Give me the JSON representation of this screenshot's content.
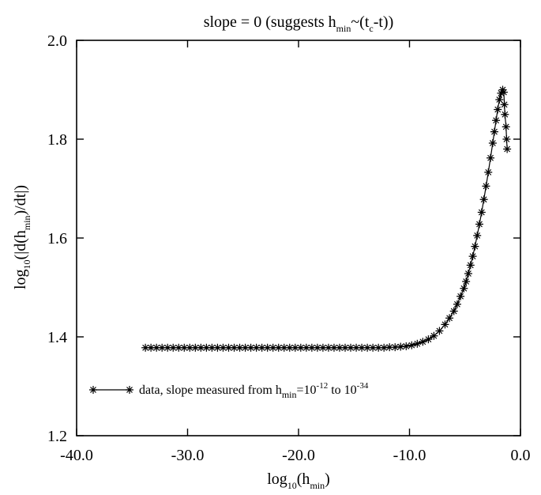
{
  "chart_data": {
    "type": "line",
    "title": {
      "prefix": "slope = 0 (suggests h",
      "sub1": "min",
      "mid": "~(t",
      "sub2": "c",
      "suffix": "-t))"
    },
    "xlabel": {
      "base": "log",
      "sub1": "10",
      "open": "(h",
      "sub2": "min",
      "close": ")"
    },
    "ylabel": {
      "base": "log",
      "sub1": "10",
      "open": "(|d(h",
      "sub2": "min",
      "close": ")/dt|)"
    },
    "xlim": [
      -40,
      0
    ],
    "ylim": [
      1.2,
      2.0
    ],
    "xticks": [
      -40,
      -30,
      -20,
      -10,
      0
    ],
    "xtick_labels": [
      "-40.0",
      "-30.0",
      "-20.0",
      "-10.0",
      "0.0"
    ],
    "yticks": [
      1.2,
      1.4,
      1.6,
      1.8,
      2.0
    ],
    "ytick_labels": [
      "1.2",
      "1.4",
      "1.6",
      "1.8",
      "2.0"
    ],
    "grid": false,
    "legend_position": "bottom-left",
    "legend": {
      "text1": "data, slope measured from h",
      "sub1": "min",
      "text2": "=10",
      "sup1": "-12",
      "text3": " to 10",
      "sup2": "-34"
    },
    "series": [
      {
        "marker": "asterisk",
        "x": [
          -33.8,
          -33.3,
          -32.8,
          -32.3,
          -31.8,
          -31.3,
          -30.8,
          -30.3,
          -29.8,
          -29.3,
          -28.8,
          -28.3,
          -27.8,
          -27.3,
          -26.8,
          -26.3,
          -25.8,
          -25.3,
          -24.8,
          -24.3,
          -23.8,
          -23.3,
          -22.8,
          -22.3,
          -21.8,
          -21.3,
          -20.8,
          -20.3,
          -19.8,
          -19.3,
          -18.8,
          -18.3,
          -17.8,
          -17.3,
          -16.8,
          -16.3,
          -15.8,
          -15.3,
          -14.8,
          -14.3,
          -13.8,
          -13.3,
          -12.8,
          -12.3,
          -11.8,
          -11.3,
          -10.8,
          -10.3,
          -9.8,
          -9.3,
          -8.8,
          -8.3,
          -7.8,
          -7.3,
          -6.8,
          -6.4,
          -6.0,
          -5.7,
          -5.4,
          -5.1,
          -4.9,
          -4.7,
          -4.5,
          -4.3,
          -4.1,
          -3.9,
          -3.7,
          -3.5,
          -3.3,
          -3.1,
          -2.9,
          -2.7,
          -2.5,
          -2.35,
          -2.2,
          -2.05,
          -1.9,
          -1.75,
          -1.6,
          -1.5,
          -1.45,
          -1.4,
          -1.3,
          -1.25,
          -1.2
        ],
        "y": [
          1.378,
          1.378,
          1.378,
          1.378,
          1.378,
          1.378,
          1.378,
          1.378,
          1.378,
          1.378,
          1.378,
          1.378,
          1.378,
          1.378,
          1.378,
          1.378,
          1.378,
          1.378,
          1.378,
          1.378,
          1.378,
          1.378,
          1.378,
          1.378,
          1.378,
          1.378,
          1.378,
          1.378,
          1.378,
          1.378,
          1.378,
          1.378,
          1.378,
          1.378,
          1.378,
          1.378,
          1.378,
          1.378,
          1.378,
          1.378,
          1.378,
          1.378,
          1.378,
          1.378,
          1.379,
          1.379,
          1.38,
          1.381,
          1.383,
          1.386,
          1.39,
          1.395,
          1.402,
          1.412,
          1.425,
          1.438,
          1.452,
          1.466,
          1.482,
          1.498,
          1.512,
          1.528,
          1.545,
          1.563,
          1.583,
          1.605,
          1.628,
          1.652,
          1.678,
          1.705,
          1.733,
          1.762,
          1.792,
          1.815,
          1.838,
          1.86,
          1.88,
          1.893,
          1.9,
          1.895,
          1.87,
          1.85,
          1.825,
          1.8,
          1.78
        ]
      }
    ]
  }
}
